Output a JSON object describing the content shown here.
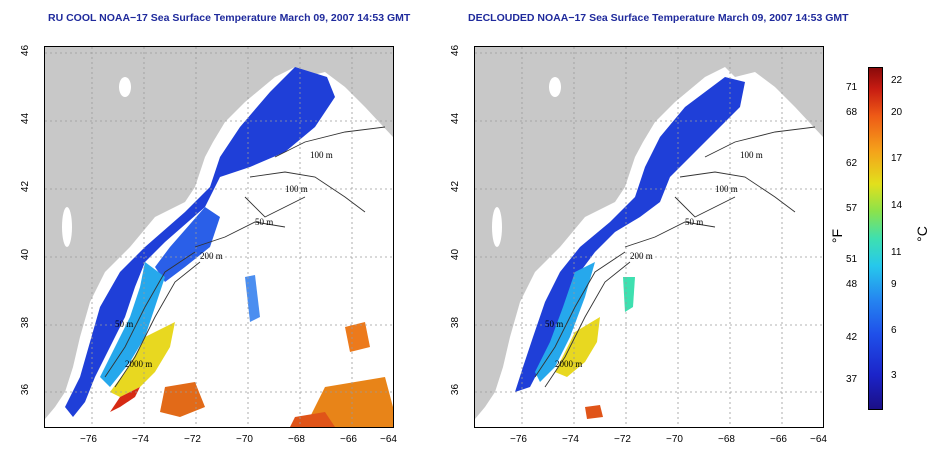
{
  "panels": [
    {
      "title": "RU COOL NOAA−17 Sea Surface Temperature March 09, 2007 14:53 GMT"
    },
    {
      "title": "DECLOUDED NOAA−17 Sea Surface Temperature March 09, 2007 14:53 GMT"
    }
  ],
  "axes": {
    "x_ticks": [
      "−76",
      "−74",
      "−72",
      "−70",
      "−68",
      "−66",
      "−64"
    ],
    "y_ticks": [
      "36",
      "38",
      "40",
      "42",
      "44",
      "46"
    ]
  },
  "contours": {
    "labels": [
      "100 m",
      "100 m",
      "50 m",
      "200 m",
      "50 m",
      "2000 m"
    ]
  },
  "colorbar": {
    "fahrenheit_ticks": [
      "71",
      "68",
      "62",
      "57",
      "51",
      "48",
      "42",
      "37"
    ],
    "celsius_ticks": [
      "22",
      "20",
      "17",
      "14",
      "11",
      "9",
      "6",
      "3"
    ],
    "fahrenheit_unit": "°F",
    "celsius_unit": "°C"
  }
}
